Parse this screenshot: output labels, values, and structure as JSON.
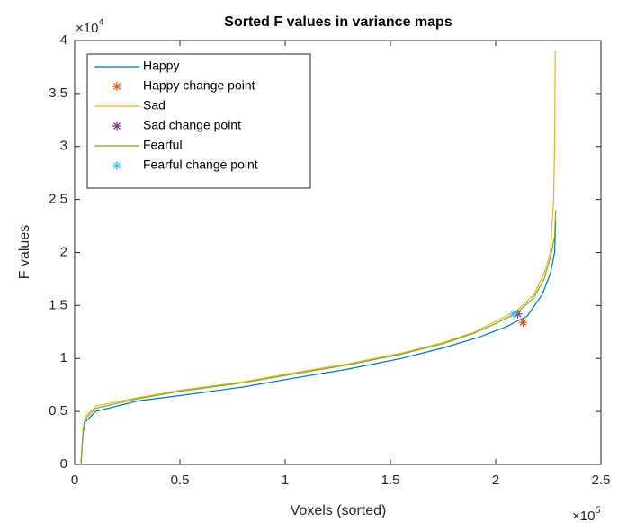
{
  "chart_data": {
    "type": "line",
    "title": "Sorted F values in variance maps",
    "xlabel": "Voxels (sorted)",
    "ylabel": "F values",
    "x_multiplier": {
      "base": "×10",
      "exponent": "5"
    },
    "y_multiplier": {
      "base": "×10",
      "exponent": "4"
    },
    "xlim": [
      0,
      250000
    ],
    "ylim": [
      0,
      40000
    ],
    "xticks": [
      0,
      {
        "value": 50000,
        "label": "0.5"
      },
      {
        "value": 100000,
        "label": "1"
      },
      {
        "value": 150000,
        "label": "1.5"
      },
      {
        "value": 200000,
        "label": "2"
      },
      {
        "value": 250000,
        "label": "2.5"
      }
    ],
    "yticks": [
      0,
      {
        "value": 5000,
        "label": "0.5"
      },
      {
        "value": 10000,
        "label": "1"
      },
      {
        "value": 15000,
        "label": "1.5"
      },
      {
        "value": 20000,
        "label": "2"
      },
      {
        "value": 25000,
        "label": "2.5"
      },
      {
        "value": 30000,
        "label": "3"
      },
      {
        "value": 35000,
        "label": "3.5"
      },
      {
        "value": 40000,
        "label": "4"
      }
    ],
    "legend": "upper left",
    "series": [
      {
        "name": "Happy",
        "color": "#0072BD",
        "marker": "none",
        "x": [
          3000,
          4000,
          5000,
          10000,
          30000,
          50000,
          80000,
          100000,
          130000,
          155000,
          175000,
          192000,
          205000,
          215000,
          222000,
          226000,
          228000,
          228500
        ],
        "values": [
          0,
          3000,
          4000,
          5000,
          6000,
          6500,
          7300,
          8000,
          9000,
          10000,
          11000,
          12000,
          13000,
          14000,
          16000,
          18000,
          20000,
          23000
        ]
      },
      {
        "name": "Happy change point",
        "color": "#D95319",
        "marker": "*",
        "x": [
          213000
        ],
        "values": [
          13400
        ]
      },
      {
        "name": "Sad",
        "color": "#EDB120",
        "marker": "none",
        "x": [
          3000,
          4000,
          5000,
          10000,
          30000,
          50000,
          80000,
          100000,
          130000,
          155000,
          175000,
          190000,
          200000,
          210000,
          218000,
          223000,
          226000,
          227500,
          228000,
          228300
        ],
        "values": [
          0,
          3300,
          4500,
          5500,
          6300,
          7000,
          7800,
          8500,
          9500,
          10500,
          11500,
          12500,
          13500,
          14500,
          16000,
          18000,
          20000,
          25000,
          30000,
          39000
        ]
      },
      {
        "name": "Sad change point",
        "color": "#7E2F8E",
        "marker": "*",
        "x": [
          210500
        ],
        "values": [
          14200
        ]
      },
      {
        "name": "Fearful",
        "color": "#77AC30",
        "marker": "none",
        "x": [
          3000,
          4000,
          5000,
          10000,
          30000,
          50000,
          80000,
          100000,
          130000,
          155000,
          175000,
          190000,
          200000,
          210000,
          218000,
          223000,
          226000,
          228000,
          228500
        ],
        "values": [
          0,
          3200,
          4300,
          5300,
          6200,
          6900,
          7700,
          8400,
          9400,
          10400,
          11400,
          12400,
          13300,
          14300,
          15700,
          17500,
          19500,
          21500,
          24000
        ]
      },
      {
        "name": "Fearful change point",
        "color": "#4DBEEE",
        "marker": "*",
        "x": [
          208500
        ],
        "values": [
          14200
        ]
      }
    ]
  }
}
